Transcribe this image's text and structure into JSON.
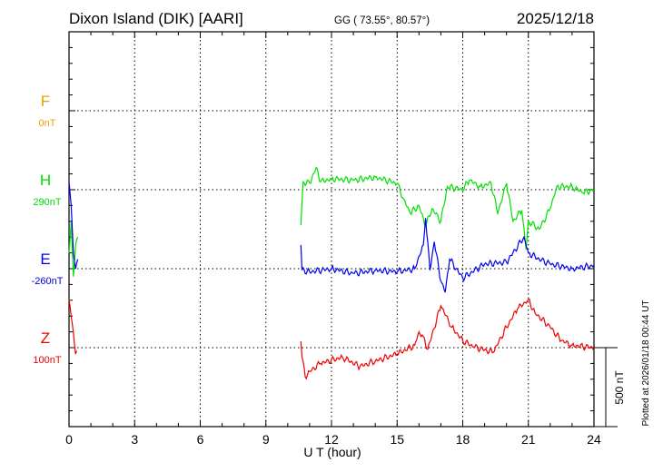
{
  "chart_data": {
    "type": "line",
    "title": "Dixon Island (DIK)  [AARI]",
    "coords": "GG ( 73.55°,  80.57°)",
    "date": "2025/12/18",
    "xlabel": "U T (hour)",
    "xlim": [
      0,
      24
    ],
    "xticks": [
      "0",
      "3",
      "6",
      "9",
      "12",
      "15",
      "18",
      "21",
      "24"
    ],
    "scale_label": "500 nT",
    "scale_nT": 500,
    "footer": "Plotted at 2026/01/18 00:44 UT",
    "grid": true,
    "series": [
      {
        "name": "F",
        "baseline_label": "0nT",
        "color": "#f0a000",
        "points": []
      },
      {
        "name": "H",
        "baseline_label": "290nT",
        "color": "#00e000",
        "points": [
          [
            0,
            -400
          ],
          [
            0.1,
            -200
          ],
          [
            0.2,
            -550
          ],
          [
            0.3,
            -350
          ],
          [
            0.4,
            -300
          ],
          null,
          [
            10.6,
            -224
          ],
          [
            10.7,
            50
          ],
          [
            11,
            40
          ],
          [
            11.3,
            140
          ],
          [
            11.5,
            50
          ],
          [
            12,
            70
          ],
          [
            13,
            60
          ],
          [
            14,
            80
          ],
          [
            15,
            40
          ],
          [
            15.3,
            -60
          ],
          [
            15.6,
            -150
          ],
          [
            16,
            -100
          ],
          [
            16.3,
            -230
          ],
          [
            16.6,
            -120
          ],
          [
            17,
            -200
          ],
          [
            17.3,
            20
          ],
          [
            18,
            0
          ],
          [
            18.3,
            60
          ],
          [
            18.8,
            20
          ],
          [
            19.3,
            40
          ],
          [
            19.6,
            -150
          ],
          [
            20,
            40
          ],
          [
            20.3,
            -200
          ],
          [
            20.7,
            -130
          ],
          [
            20.9,
            -380
          ],
          [
            21,
            -200
          ],
          [
            21.5,
            -250
          ],
          [
            22,
            -120
          ],
          [
            22.3,
            20
          ],
          [
            23,
            20
          ],
          [
            23.5,
            -20
          ],
          [
            24,
            0
          ]
        ]
      },
      {
        "name": "E",
        "baseline_label": "-260nT",
        "color": "#0000f0",
        "points": [
          [
            0,
            550
          ],
          [
            0.1,
            400
          ],
          [
            0.2,
            100
          ],
          [
            0.3,
            0
          ],
          [
            0.4,
            60
          ],
          null,
          [
            10.6,
            150
          ],
          [
            10.65,
            -10
          ],
          [
            11,
            -20
          ],
          [
            12,
            0
          ],
          [
            13,
            -30
          ],
          [
            14,
            -10
          ],
          [
            15,
            -20
          ],
          [
            15.8,
            0
          ],
          [
            16.2,
            150
          ],
          [
            16.3,
            320
          ],
          [
            16.5,
            -10
          ],
          [
            16.7,
            170
          ],
          [
            17,
            -80
          ],
          [
            17.2,
            -150
          ],
          [
            17.4,
            60
          ],
          [
            18,
            -60
          ],
          [
            19,
            30
          ],
          [
            20,
            40
          ],
          [
            20.8,
            200
          ],
          [
            21,
            100
          ],
          [
            21.5,
            60
          ],
          [
            22,
            30
          ],
          [
            23,
            0
          ],
          [
            24,
            20
          ]
        ]
      },
      {
        "name": "Z",
        "baseline_label": "100nT",
        "color": "#f00000",
        "points": [
          [
            0,
            305
          ],
          [
            0.15,
            150
          ],
          [
            0.3,
            -40
          ],
          [
            0.35,
            -20
          ],
          null,
          [
            10.6,
            40
          ],
          [
            10.65,
            -60
          ],
          [
            10.8,
            -185
          ],
          [
            11,
            -150
          ],
          [
            11.5,
            -100
          ],
          [
            12.5,
            -60
          ],
          [
            13.3,
            -120
          ],
          [
            14,
            -85
          ],
          [
            15,
            -40
          ],
          [
            15.8,
            15
          ],
          [
            16,
            100
          ],
          [
            16.2,
            70
          ],
          [
            16.4,
            -10
          ],
          [
            17,
            265
          ],
          [
            17.5,
            130
          ],
          [
            18,
            45
          ],
          [
            18.5,
            5
          ],
          [
            19.4,
            -30
          ],
          [
            20,
            130
          ],
          [
            20.5,
            245
          ],
          [
            21,
            305
          ],
          [
            21.3,
            220
          ],
          [
            22,
            130
          ],
          [
            22.5,
            45
          ],
          [
            23,
            15
          ],
          [
            24,
            0
          ]
        ]
      }
    ]
  }
}
